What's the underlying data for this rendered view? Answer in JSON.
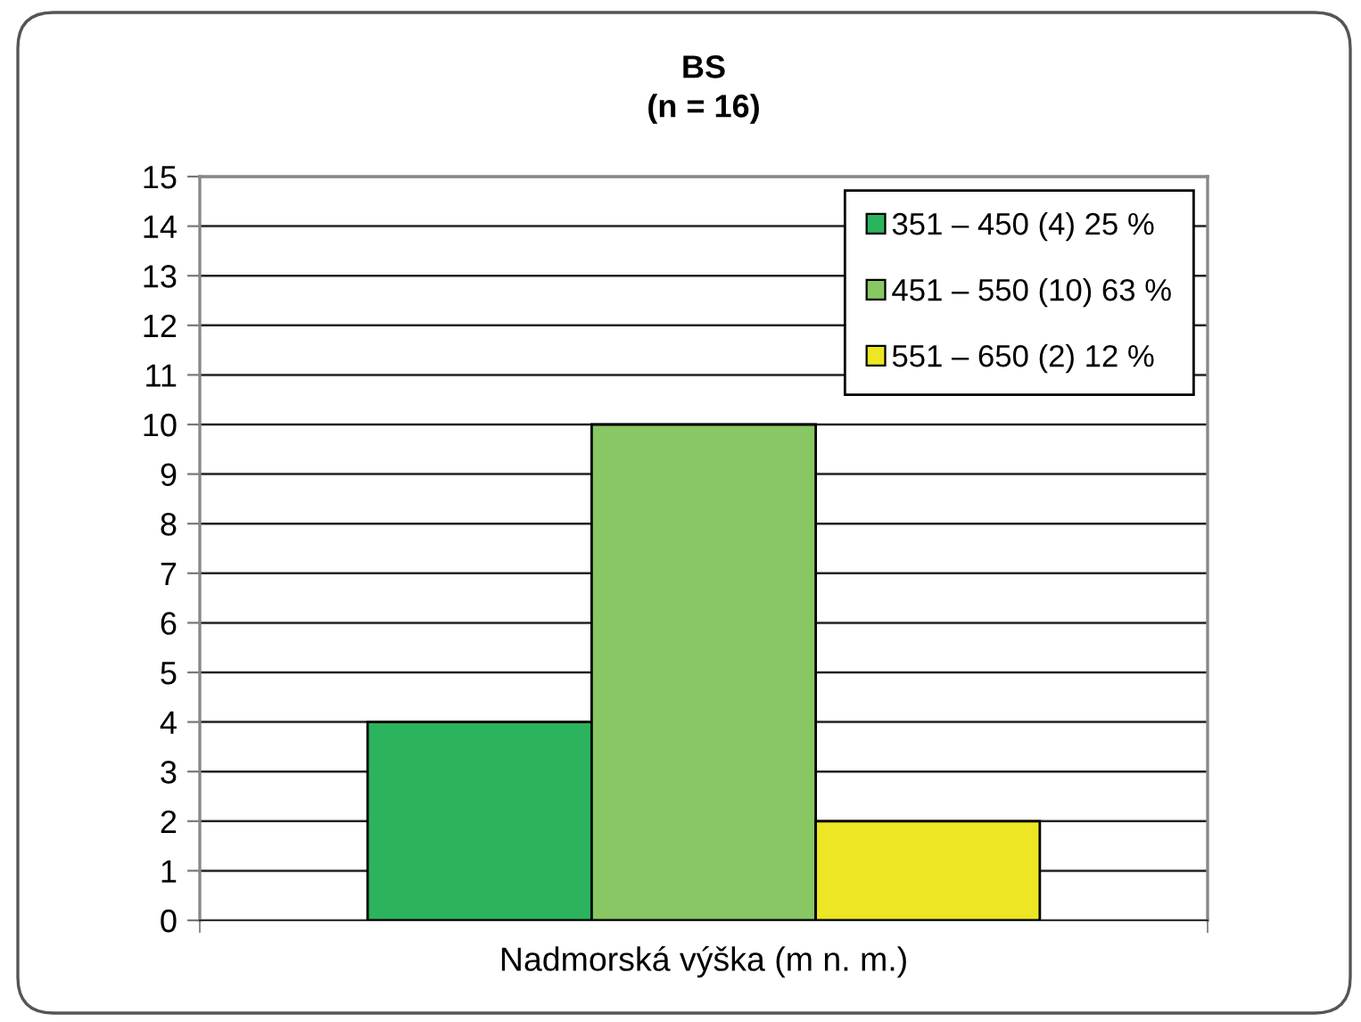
{
  "chart_data": {
    "type": "bar",
    "title": "BS",
    "subtitle": "(n = 16)",
    "xlabel": "Nadmorská výška (m n. m.)",
    "categories": [
      null
    ],
    "series": [
      {
        "name": "351 – 450 (4) 25 %",
        "color": "#2bb35d",
        "values": [
          4
        ]
      },
      {
        "name": "451 – 550 (10) 63 %",
        "color": "#88c763",
        "values": [
          10
        ]
      },
      {
        "name": "551 – 650 (2) 12 %",
        "color": "#ece624",
        "values": [
          2
        ]
      }
    ],
    "ylim": [
      0,
      15
    ],
    "yticks": [
      0,
      1,
      2,
      3,
      4,
      5,
      6,
      7,
      8,
      9,
      10,
      11,
      12,
      13,
      14,
      15
    ],
    "grid": "y",
    "legend": "top right"
  }
}
